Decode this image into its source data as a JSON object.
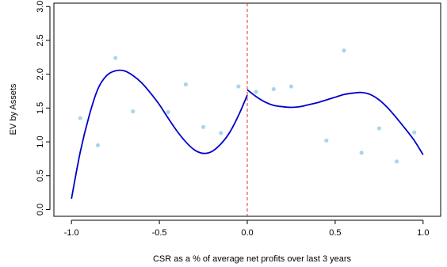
{
  "chart_data": {
    "type": "scatter",
    "title": "",
    "xlabel": "CSR as a % of average net profits over last 3 years",
    "ylabel": "EV by Assets",
    "xlim": [
      -1.1,
      1.1
    ],
    "ylim": [
      -0.1,
      3.05
    ],
    "xticks": [
      -1.0,
      -0.5,
      0.0,
      0.5,
      1.0
    ],
    "xtick_labels": [
      "-1.0",
      "-0.5",
      "0.0",
      "0.5",
      "1.0"
    ],
    "yticks": [
      0.0,
      0.5,
      1.0,
      1.5,
      2.0,
      2.5,
      3.0
    ],
    "ytick_labels": [
      "0.0",
      "0.5",
      "1.0",
      "1.5",
      "2.0",
      "2.5",
      "3.0"
    ],
    "grid": false,
    "legend": "none",
    "cutoff": {
      "x": 0.0,
      "style": "dashed",
      "color": "#e03030"
    },
    "points": {
      "color": "#a6d8ea",
      "x": [
        -0.95,
        -0.85,
        -0.75,
        -0.65,
        -0.45,
        -0.35,
        -0.25,
        -0.15,
        -0.05,
        0.05,
        0.15,
        0.25,
        0.45,
        0.55,
        0.65,
        0.75,
        0.85,
        0.95
      ],
      "y": [
        1.35,
        0.95,
        2.24,
        1.45,
        1.44,
        1.85,
        1.22,
        1.13,
        1.82,
        1.74,
        1.78,
        1.82,
        1.02,
        2.35,
        0.84,
        1.2,
        0.71,
        1.14
      ]
    },
    "fit_left": {
      "color": "#0000cc",
      "x": [
        -1.0,
        -0.95,
        -0.9,
        -0.85,
        -0.8,
        -0.75,
        -0.7,
        -0.65,
        -0.6,
        -0.55,
        -0.5,
        -0.45,
        -0.4,
        -0.35,
        -0.3,
        -0.25,
        -0.2,
        -0.15,
        -0.1,
        -0.05,
        0.0
      ],
      "y": [
        0.16,
        0.85,
        1.38,
        1.78,
        1.98,
        2.05,
        2.05,
        1.98,
        1.87,
        1.72,
        1.55,
        1.35,
        1.16,
        1.0,
        0.88,
        0.83,
        0.86,
        0.97,
        1.14,
        1.39,
        1.69
      ]
    },
    "fit_right": {
      "color": "#0000cc",
      "x": [
        0.0,
        0.05,
        0.1,
        0.15,
        0.2,
        0.25,
        0.3,
        0.35,
        0.4,
        0.45,
        0.5,
        0.55,
        0.6,
        0.65,
        0.7,
        0.75,
        0.8,
        0.85,
        0.9,
        0.95,
        1.0
      ],
      "y": [
        1.77,
        1.67,
        1.59,
        1.54,
        1.52,
        1.51,
        1.52,
        1.55,
        1.58,
        1.62,
        1.66,
        1.7,
        1.72,
        1.73,
        1.7,
        1.62,
        1.5,
        1.35,
        1.19,
        1.02,
        0.81
      ]
    }
  }
}
